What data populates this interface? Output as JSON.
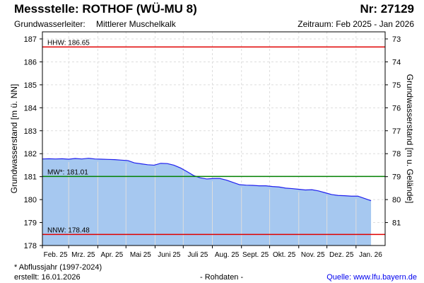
{
  "header": {
    "title": "Messstelle: ROTHOF (WÜ-MU 8)",
    "number": "Nr: 27129",
    "aquifer_label": "Grundwasserleiter:",
    "aquifer": "Mittlerer Muschelkalk",
    "period": "Zeitraum: Feb 2025 - Jan 2026"
  },
  "footer": {
    "note": "* Abflussjahr (1997-2024)",
    "created": "erstellt:  16.01.2026",
    "raw": "- Rohdaten -",
    "source": "Quelle: www.lfu.bayern.de"
  },
  "chart_data": {
    "type": "area",
    "ylabel": "Grundwasserstand [m ü. NN]",
    "y2label": "Grundwasserstand [m u. Gelände]",
    "ylim": [
      178,
      187
    ],
    "yticks": [
      178,
      179,
      180,
      181,
      182,
      183,
      184,
      185,
      186,
      187
    ],
    "y2ticks": [
      73,
      74,
      75,
      76,
      77,
      78,
      79,
      80,
      81
    ],
    "xlim_days": [
      0,
      365
    ],
    "month_days": [
      0,
      28,
      59,
      89,
      120,
      150,
      181,
      212,
      242,
      273,
      303,
      334
    ],
    "xticks": [
      "Feb. 25",
      "Mrz. 25",
      "Apr. 25",
      "Mai 25",
      "Juni 25",
      "Juli 25",
      "Aug. 25",
      "Sept. 25",
      "Okt. 25",
      "Nov. 25",
      "Dez. 25",
      "Jan. 26"
    ],
    "series": [
      {
        "name": "Grundwasserstand",
        "color": "#2020ee",
        "fill": "#a6c8f0",
        "x": [
          0,
          7,
          14,
          21,
          28,
          35,
          42,
          49,
          56,
          63,
          70,
          77,
          84,
          91,
          98,
          105,
          112,
          119,
          126,
          133,
          140,
          147,
          154,
          161,
          168,
          175,
          182,
          189,
          196,
          203,
          210,
          217,
          224,
          231,
          238,
          245,
          252,
          259,
          266,
          273,
          280,
          287,
          294,
          301,
          308,
          315,
          322,
          329,
          336,
          343,
          350
        ],
        "y": [
          181.77,
          181.78,
          181.77,
          181.78,
          181.76,
          181.79,
          181.77,
          181.8,
          181.77,
          181.76,
          181.75,
          181.74,
          181.72,
          181.7,
          181.6,
          181.56,
          181.52,
          181.5,
          181.58,
          181.57,
          181.5,
          181.38,
          181.22,
          181.05,
          180.95,
          180.9,
          180.92,
          180.92,
          180.85,
          180.75,
          180.65,
          180.63,
          180.62,
          180.6,
          180.6,
          180.57,
          180.55,
          180.5,
          180.48,
          180.45,
          180.42,
          180.43,
          180.38,
          180.3,
          180.22,
          180.18,
          180.17,
          180.15,
          180.15,
          180.05,
          179.95
        ]
      }
    ],
    "reference_lines": [
      {
        "label": "HHW: 186.65",
        "value": 186.65,
        "color": "#e00000"
      },
      {
        "label": "MW*: 181.01",
        "value": 181.01,
        "color": "#008000"
      },
      {
        "label": "NNW: 178.48",
        "value": 178.48,
        "color": "#e00000"
      }
    ],
    "grid": true
  }
}
